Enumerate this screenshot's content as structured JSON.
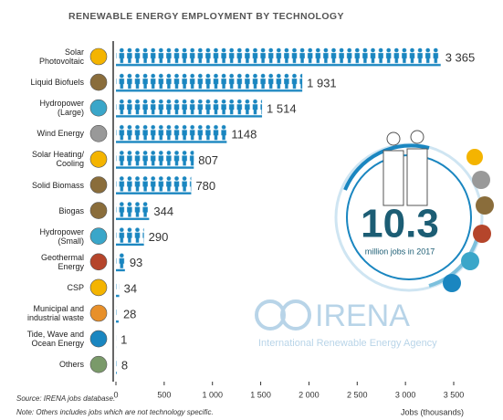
{
  "chart_data": {
    "type": "bar",
    "orientation": "horizontal",
    "title": "RENEWABLE ENERGY EMPLOYMENT BY TECHNOLOGY",
    "categories": [
      "Solar\nPhotovoltaic",
      "Liquid Biofuels",
      "Hydropower\n(Large)",
      "Wind Energy",
      "Solar Heating/\nCooling",
      "Solid Biomass",
      "Biogas",
      "Hydropower\n(Small)",
      "Geothermal\nEnergy",
      "CSP",
      "Municipal and\nindustrial waste",
      "Tide, Wave and\nOcean Energy",
      "Others"
    ],
    "values": [
      3365,
      1931,
      1514,
      1148,
      807,
      780,
      344,
      290,
      93,
      34,
      28,
      1,
      8
    ],
    "value_labels": [
      "3 365",
      "1 931",
      "1 514",
      "1148",
      "807",
      "780",
      "344",
      "290",
      "93",
      "34",
      "28",
      "1",
      "8"
    ],
    "color": "#1a86c0",
    "xlim": [
      0,
      3500
    ],
    "xticks": [
      0,
      500,
      {
        "value": 1000,
        "label": "1 000"
      },
      {
        "value": 1500,
        "label": "1 500"
      },
      {
        "value": 2000,
        "label": "2 000"
      },
      {
        "value": 2500,
        "label": "2 500"
      },
      {
        "value": 3000,
        "label": "3 000"
      },
      {
        "value": 3500,
        "label": "3 500"
      }
    ],
    "x_label": "Jobs (thousands)",
    "headline": "10.3",
    "headline_caption": "million jobs in 2017",
    "logo": "IRENA",
    "logo_caption": "International Renewable Energy Agency",
    "source": "Source: IRENA jobs database.",
    "note": "Note: Others includes jobs which are not technology specific."
  }
}
